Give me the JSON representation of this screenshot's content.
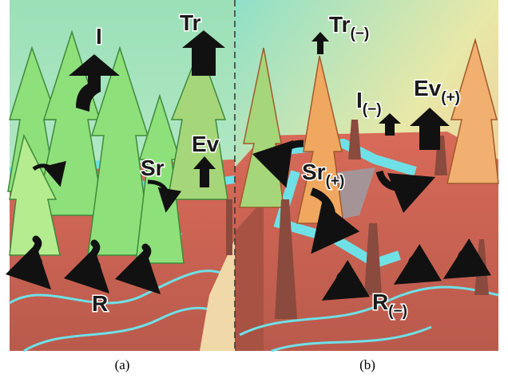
{
  "panels": [
    {
      "caption": "(a)",
      "labels": [
        {
          "text": "Tr"
        },
        {
          "text": "I"
        },
        {
          "text": "Ev"
        },
        {
          "text": "Sr"
        },
        {
          "text": "R"
        }
      ]
    },
    {
      "caption": "(b)",
      "labels": [
        {
          "text": "Tr",
          "sub": "(−)"
        },
        {
          "text": "I",
          "sub": "(−)"
        },
        {
          "text": "Ev",
          "sub": "(+)"
        },
        {
          "text": "Sr",
          "sub": "(+)"
        },
        {
          "text": "R",
          "sub": "(−)"
        }
      ]
    }
  ]
}
